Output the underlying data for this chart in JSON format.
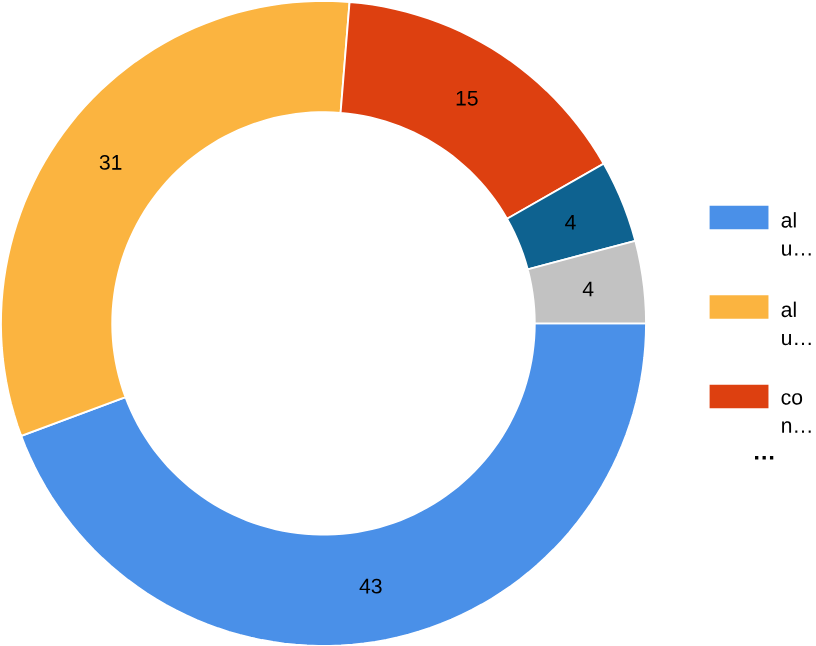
{
  "chart_data": {
    "type": "donut",
    "categories": [
      "al u…",
      "al u…",
      "co n…",
      null,
      null
    ],
    "values": [
      43,
      31,
      15,
      4,
      4
    ],
    "colors": [
      "#4a90e8",
      "#fbb440",
      "#dd4010",
      "#0e6290",
      "#c2c2c2"
    ],
    "data_labels": true,
    "legend": "right",
    "annotations": [
      "…"
    ]
  }
}
